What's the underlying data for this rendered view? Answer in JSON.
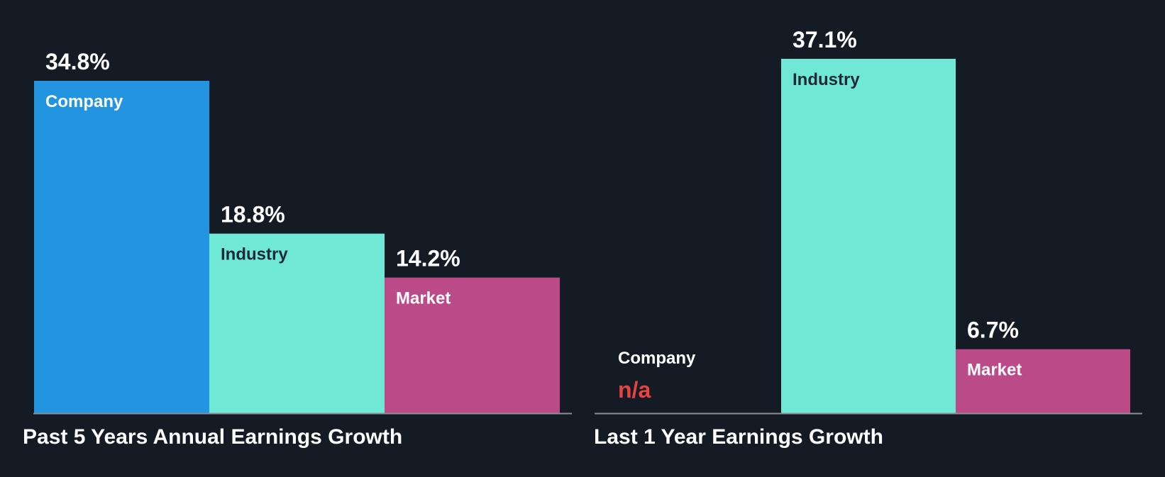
{
  "background": "#151b24",
  "colors": {
    "company": "#2394e0",
    "industry": "#6fe8d6",
    "market": "#bb4a88",
    "baseline": "#8a8f96",
    "value_text": "#ffffff",
    "na_text": "#e8433f",
    "label_on_light": "#1e2a36",
    "label_on_dark": "#ffffff"
  },
  "chart_data": [
    {
      "type": "bar",
      "title": "Past 5 Years Annual Earnings Growth",
      "categories": [
        "Company",
        "Industry",
        "Market"
      ],
      "values": [
        34.8,
        18.8,
        14.2
      ],
      "value_labels": [
        "34.8%",
        "18.8%",
        "14.2%"
      ],
      "ylim": [
        0,
        37.1
      ],
      "legend": "none",
      "grid": false
    },
    {
      "type": "bar",
      "title": "Last 1 Year Earnings Growth",
      "categories": [
        "Company",
        "Industry",
        "Market"
      ],
      "values": [
        null,
        37.1,
        6.7
      ],
      "value_labels": [
        "n/a",
        "37.1%",
        "6.7%"
      ],
      "ylim": [
        0,
        37.1
      ],
      "legend": "none",
      "grid": false
    }
  ]
}
